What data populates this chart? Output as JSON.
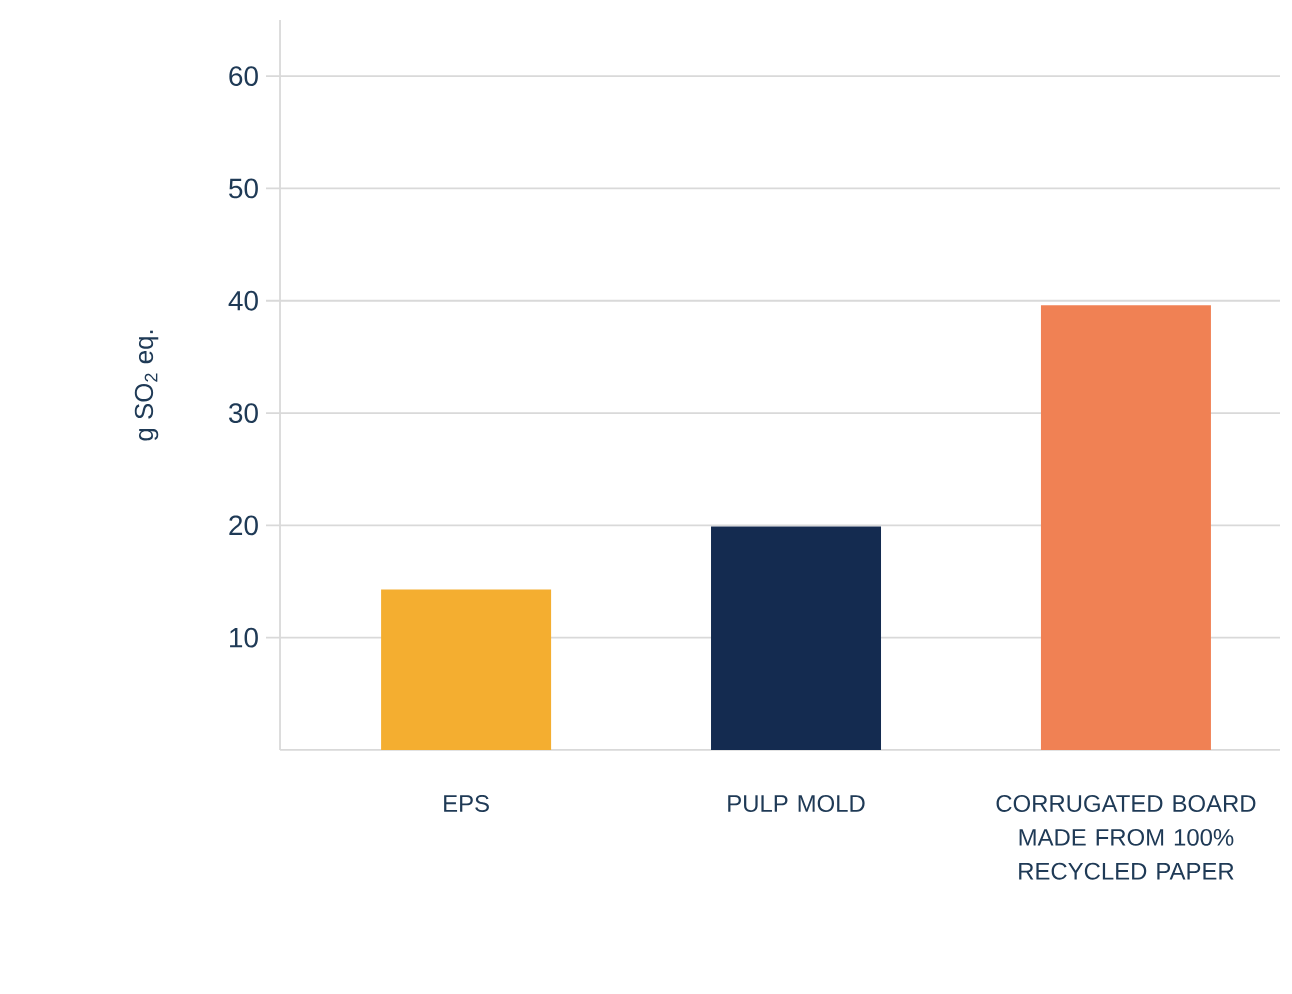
{
  "chart_data": {
    "type": "bar",
    "ylabel": "g SO$_{2}$ eq.",
    "categories": [
      "EPS",
      "PULP MOLD",
      "CORRUGATED BOARD MADE FROM 100% RECYCLED PAPER"
    ],
    "values": [
      14.3,
      19.9,
      39.6
    ],
    "colors": [
      "#f4ae30",
      "#142b50",
      "#f08154"
    ],
    "ylim": [
      0,
      65
    ],
    "yticks": [
      10,
      20,
      30,
      40,
      50,
      60
    ],
    "grid": "y"
  }
}
